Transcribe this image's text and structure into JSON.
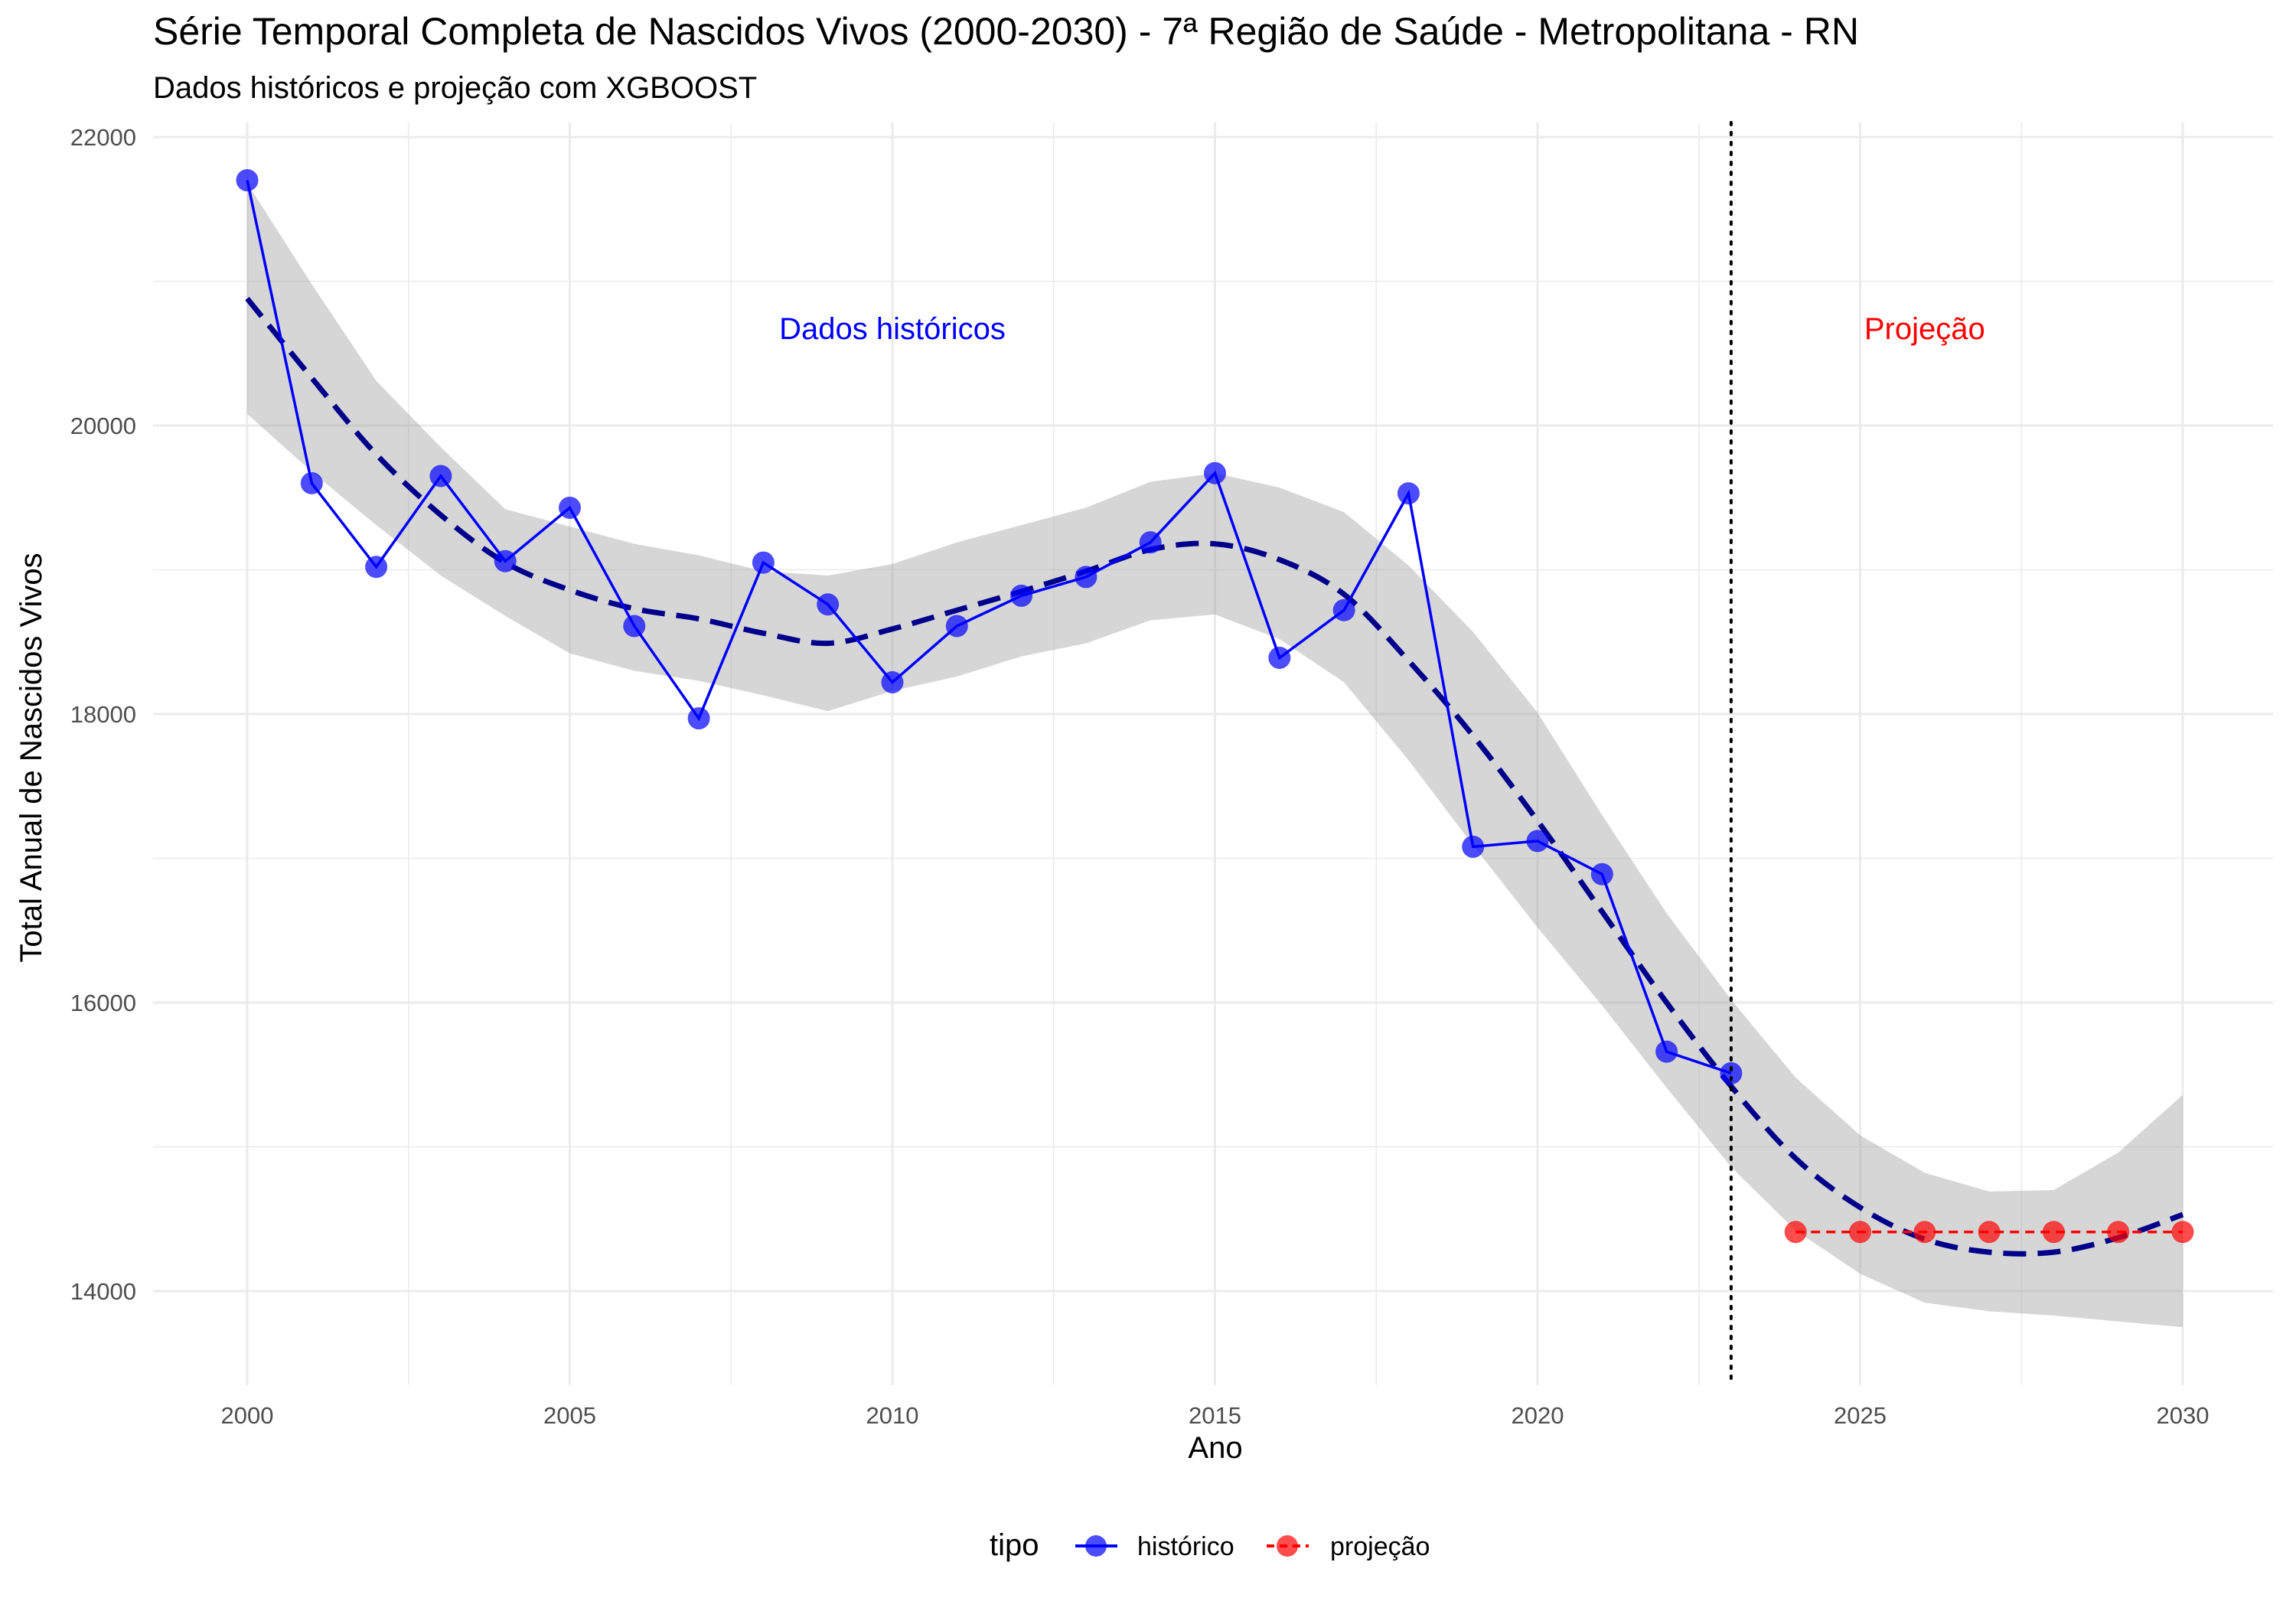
{
  "chart_data": {
    "type": "line",
    "title": "Série Temporal Completa de Nascidos Vivos (2000-2030) -  7ª Região de Saúde - Metropolitana - RN",
    "subtitle": "Dados históricos e projeção com XGBOOST",
    "xlabel": "Ano",
    "ylabel": "Total Anual de Nascidos Vivos",
    "xlim": [
      1998.5,
      2031.5
    ],
    "ylim": [
      13350,
      22200
    ],
    "x_ticks": [
      2000,
      2005,
      2010,
      2015,
      2020,
      2025,
      2030
    ],
    "y_ticks": [
      14000,
      16000,
      18000,
      20000,
      22000
    ],
    "grid": true,
    "legend": {
      "title": "tipo",
      "position": "bottom",
      "entries": [
        {
          "label": "histórico",
          "color": "#0000ff"
        },
        {
          "label": "projeção",
          "color": "#ff0000"
        }
      ]
    },
    "series": [
      {
        "name": "histórico",
        "color": "#0000ff",
        "x": [
          2000,
          2001,
          2002,
          2003,
          2004,
          2005,
          2006,
          2007,
          2008,
          2009,
          2010,
          2011,
          2012,
          2013,
          2014,
          2015,
          2016,
          2017,
          2018,
          2019,
          2020,
          2021,
          2022,
          2023
        ],
        "values": [
          21700,
          19600,
          19020,
          19650,
          19060,
          19430,
          18610,
          17970,
          19050,
          18760,
          18220,
          18610,
          18820,
          18950,
          19190,
          19670,
          18390,
          18720,
          19530,
          17080,
          17120,
          16890,
          15660,
          15510
        ]
      },
      {
        "name": "projeção",
        "color": "#ff0000",
        "x": [
          2024,
          2025,
          2026,
          2027,
          2028,
          2029,
          2030
        ],
        "values": [
          14410,
          14410,
          14410,
          14410,
          14410,
          14410,
          14410
        ]
      }
    ],
    "trend": {
      "color": "#00008b",
      "x": [
        2000,
        2001,
        2002,
        2003,
        2004,
        2005,
        2006,
        2007,
        2008,
        2009,
        2010,
        2011,
        2012,
        2013,
        2014,
        2015,
        2016,
        2017,
        2018,
        2019,
        2020,
        2021,
        2022,
        2023,
        2024,
        2025,
        2026,
        2027,
        2028,
        2029,
        2030
      ],
      "values": [
        20880,
        20330,
        19800,
        19380,
        19050,
        18860,
        18730,
        18660,
        18560,
        18490,
        18590,
        18720,
        18850,
        18990,
        19140,
        19180,
        19070,
        18830,
        18370,
        17850,
        17260,
        16630,
        16000,
        15420,
        14920,
        14580,
        14360,
        14270,
        14270,
        14370,
        14530
      ],
      "band_lower": [
        20080,
        19680,
        19310,
        18960,
        18680,
        18420,
        18300,
        18230,
        18130,
        18020,
        18160,
        18260,
        18400,
        18490,
        18650,
        18690,
        18520,
        18220,
        17680,
        17090,
        16520,
        15980,
        15410,
        14860,
        14420,
        14120,
        13920,
        13860,
        13830,
        13790,
        13750
      ],
      "band_upper": [
        21680,
        20980,
        20310,
        19850,
        19420,
        19300,
        19180,
        19100,
        18990,
        18960,
        19040,
        19190,
        19310,
        19430,
        19610,
        19670,
        19570,
        19400,
        19030,
        18570,
        18010,
        17300,
        16620,
        16020,
        15480,
        15080,
        14820,
        14690,
        14700,
        14960,
        15360
      ]
    },
    "divider_x": 2023,
    "annotations": [
      {
        "text": "Dados históricos",
        "x": 2010,
        "y": 20600,
        "color": "#0000ff"
      },
      {
        "text": "Projeção",
        "x": 2026,
        "y": 20600,
        "color": "#ff0000"
      }
    ]
  }
}
